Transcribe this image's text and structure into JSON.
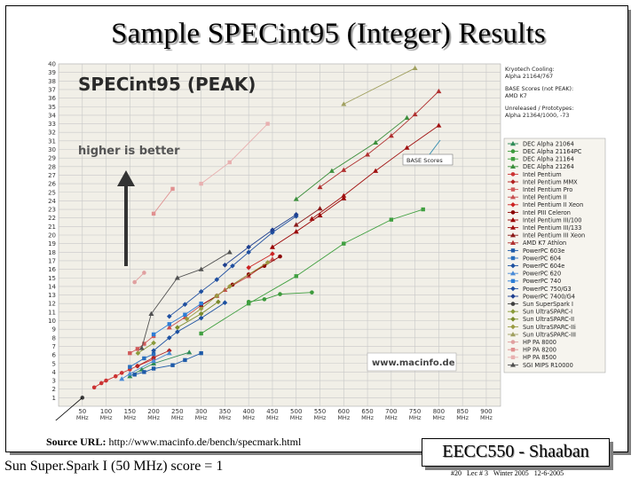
{
  "slide": {
    "title": "Sample SPECint95 (Integer) Results",
    "source_label": "Source URL:",
    "source_url": "http://www.macinfo.de/bench/specmark.html",
    "note": "Sun Super.Spark I (50 MHz)  score = 1",
    "course": "EECC550 - Shaaban",
    "footer": "#20   Lec # 3   Winter 2005   12-6-2005"
  },
  "chart_data": {
    "type": "line",
    "title": "SPECint95 (PEAK)",
    "annotation": "higher is better",
    "watermark": "www.macinfo.de",
    "base_callout": "BASE Scores",
    "notes": [
      "Kryotech Cooling:",
      "Alpha 21164/767",
      "BASE Scores (not PEAK):",
      "AMD K7",
      "Unreleased / Prototypes:",
      "Alpha 21364/1000, -73"
    ],
    "xlim": [
      0,
      1000
    ],
    "ylim": [
      0,
      40
    ],
    "x_ticks": [
      50,
      100,
      150,
      200,
      250,
      300,
      350,
      400,
      450,
      500,
      550,
      600,
      650,
      700,
      750,
      800,
      850,
      900
    ],
    "x_tick_unit": "MHz",
    "y_ticks": [
      1,
      2,
      3,
      4,
      5,
      6,
      7,
      8,
      9,
      10,
      11,
      12,
      13,
      14,
      15,
      16,
      17,
      18,
      19,
      20,
      21,
      22,
      23,
      24,
      25,
      26,
      27,
      28,
      29,
      30,
      31,
      32,
      33,
      34,
      35,
      36,
      37,
      38,
      39,
      40
    ],
    "grid": true,
    "legend_position": "right",
    "colors": {
      "plot_bg": "#f1efe7",
      "grid": "#c8c8c8",
      "title": "#2a2a2a"
    },
    "series": [
      {
        "name": "DEC Alpha 21064",
        "color": "#2e8b57",
        "marker": "triangle",
        "x": [
          150,
          175,
          200,
          275
        ],
        "y": [
          3.5,
          4.3,
          5.0,
          6.3
        ]
      },
      {
        "name": "DEC Alpha 21164PC",
        "color": "#3c9a3c",
        "marker": "circle",
        "x": [
          400,
          433,
          466,
          533
        ],
        "y": [
          12.2,
          12.5,
          13.1,
          13.3
        ]
      },
      {
        "name": "DEC Alpha 21164",
        "color": "#40a040",
        "marker": "square",
        "x": [
          300,
          400,
          500,
          600,
          700,
          767
        ],
        "y": [
          8.5,
          12,
          15.2,
          19,
          21.8,
          23
        ]
      },
      {
        "name": "DEC Alpha 21264",
        "color": "#3c8f3c",
        "marker": "triangle",
        "x": [
          500,
          575,
          667,
          733
        ],
        "y": [
          24.2,
          27.5,
          30.8,
          33.7
        ]
      },
      {
        "name": "Intel Pentium",
        "color": "#cc3333",
        "marker": "circle",
        "x": [
          75,
          90,
          100,
          120,
          133,
          150,
          166,
          200
        ],
        "y": [
          2.2,
          2.7,
          3.0,
          3.5,
          3.9,
          4.3,
          4.7,
          5.5
        ]
      },
      {
        "name": "Intel Pentium MMX",
        "color": "#b22222",
        "marker": "diamond",
        "x": [
          166,
          200,
          233
        ],
        "y": [
          4.7,
          5.7,
          6.5
        ]
      },
      {
        "name": "Intel Pentium Pro",
        "color": "#d05a5a",
        "marker": "square",
        "x": [
          150,
          166,
          180,
          200
        ],
        "y": [
          6.2,
          6.7,
          7.3,
          8.2
        ]
      },
      {
        "name": "Intel Pentium II",
        "color": "#c85050",
        "marker": "triangle",
        "x": [
          233,
          266,
          300,
          333,
          350,
          400,
          450
        ],
        "y": [
          9.2,
          10.4,
          11.8,
          12.9,
          13.6,
          15.2,
          17.2
        ]
      },
      {
        "name": "Intel Pentium II Xeon",
        "color": "#cc2222",
        "marker": "diamond",
        "x": [
          400,
          450
        ],
        "y": [
          16.2,
          17.8
        ]
      },
      {
        "name": "Intel PIII Celeron",
        "color": "#8b0000",
        "marker": "circle",
        "x": [
          300,
          333,
          366,
          400,
          433,
          466
        ],
        "y": [
          11.8,
          12.9,
          14.2,
          15.4,
          16.4,
          17.5
        ]
      },
      {
        "name": "Intel Pentium III/100",
        "color": "#990000",
        "marker": "triangle",
        "x": [
          450,
          500,
          550,
          600
        ],
        "y": [
          18.6,
          20.4,
          22.3,
          24.3
        ]
      },
      {
        "name": "Intel Pentium III/133",
        "color": "#a01010",
        "marker": "triangle",
        "x": [
          533,
          600,
          667,
          733,
          800
        ],
        "y": [
          21.9,
          24.6,
          27.5,
          30.2,
          32.8
        ]
      },
      {
        "name": "Intel Pentium III Xeon",
        "color": "#8b1a1a",
        "marker": "triangle",
        "x": [
          500,
          550
        ],
        "y": [
          21.2,
          23.1
        ]
      },
      {
        "name": "AMD K7 Athlon",
        "color": "#b03030",
        "marker": "triangle",
        "x": [
          550,
          600,
          650,
          700,
          750,
          800
        ],
        "y": [
          25.6,
          27.6,
          29.4,
          31.6,
          34.1,
          36.8
        ]
      },
      {
        "name": "PowerPC 603e",
        "color": "#1e5aa8",
        "marker": "square",
        "x": [
          160,
          180,
          200,
          240,
          266,
          300
        ],
        "y": [
          3.7,
          4.0,
          4.4,
          4.8,
          5.4,
          6.2
        ]
      },
      {
        "name": "PowerPC 604",
        "color": "#2a6fbd",
        "marker": "square",
        "x": [
          150,
          180,
          200
        ],
        "y": [
          4.6,
          5.6,
          6.1
        ]
      },
      {
        "name": "PowerPC 604e",
        "color": "#1c50a0",
        "marker": "diamond",
        "x": [
          200,
          233,
          250,
          300,
          350
        ],
        "y": [
          6.5,
          8.0,
          8.7,
          10.3,
          12.1
        ]
      },
      {
        "name": "PowerPC 620",
        "color": "#4a8bd6",
        "marker": "triangle",
        "x": [
          133,
          150,
          200,
          233
        ],
        "y": [
          3.2,
          3.8,
          5.3,
          6.2
        ]
      },
      {
        "name": "PowerPC 740",
        "color": "#2c7dd6",
        "marker": "square",
        "x": [
          200,
          233,
          266,
          300
        ],
        "y": [
          8.4,
          9.6,
          10.7,
          12.0
        ]
      },
      {
        "name": "PowerPC 750/G3",
        "color": "#1f4fa0",
        "marker": "diamond",
        "x": [
          233,
          266,
          300,
          333,
          366,
          400,
          450,
          500
        ],
        "y": [
          10.5,
          11.9,
          13.4,
          14.8,
          16.4,
          18.0,
          20.3,
          22.2
        ]
      },
      {
        "name": "PowerPC 7400/G4",
        "color": "#1e3f8f",
        "marker": "diamond",
        "x": [
          350,
          400,
          450,
          500
        ],
        "y": [
          16.5,
          18.6,
          20.6,
          22.4
        ]
      },
      {
        "name": "Sun SuperSpark I",
        "color": "#404040",
        "marker": "circle",
        "x": [
          50
        ],
        "y": [
          1.0
        ]
      },
      {
        "name": "Sun UltraSPARC-I",
        "color": "#8a9a3a",
        "marker": "diamond",
        "x": [
          167,
          200
        ],
        "y": [
          6.2,
          7.4
        ]
      },
      {
        "name": "Sun UltraSPARC-II",
        "color": "#7a8a2a",
        "marker": "diamond",
        "x": [
          250,
          300,
          336
        ],
        "y": [
          9.2,
          10.8,
          12.2
        ]
      },
      {
        "name": "Sun UltraSPARC-IIi",
        "color": "#9a9a40",
        "marker": "diamond",
        "x": [
          270,
          300,
          333,
          360,
          440
        ],
        "y": [
          10.2,
          11.4,
          12.9,
          14.0,
          16.8
        ]
      },
      {
        "name": "Sun UltraSPARC-III",
        "color": "#a0a060",
        "marker": "triangle",
        "x": [
          600,
          750
        ],
        "y": [
          35.3,
          39.5
        ]
      },
      {
        "name": "HP PA 8000",
        "color": "#e0a0a0",
        "marker": "circle",
        "x": [
          160,
          180
        ],
        "y": [
          14.5,
          15.6
        ]
      },
      {
        "name": "HP PA 8200",
        "color": "#e09090",
        "marker": "square",
        "x": [
          200,
          240
        ],
        "y": [
          22.5,
          25.4
        ]
      },
      {
        "name": "HP PA 8500",
        "color": "#e8b0b0",
        "marker": "square",
        "x": [
          300,
          360,
          440
        ],
        "y": [
          26.0,
          28.5,
          33.0
        ]
      },
      {
        "name": "SGI MIPS R10000",
        "color": "#505050",
        "marker": "triangle",
        "x": [
          175,
          195,
          250,
          300,
          360
        ],
        "y": [
          6.8,
          10.8,
          15.0,
          16.0,
          18.0
        ]
      }
    ]
  }
}
